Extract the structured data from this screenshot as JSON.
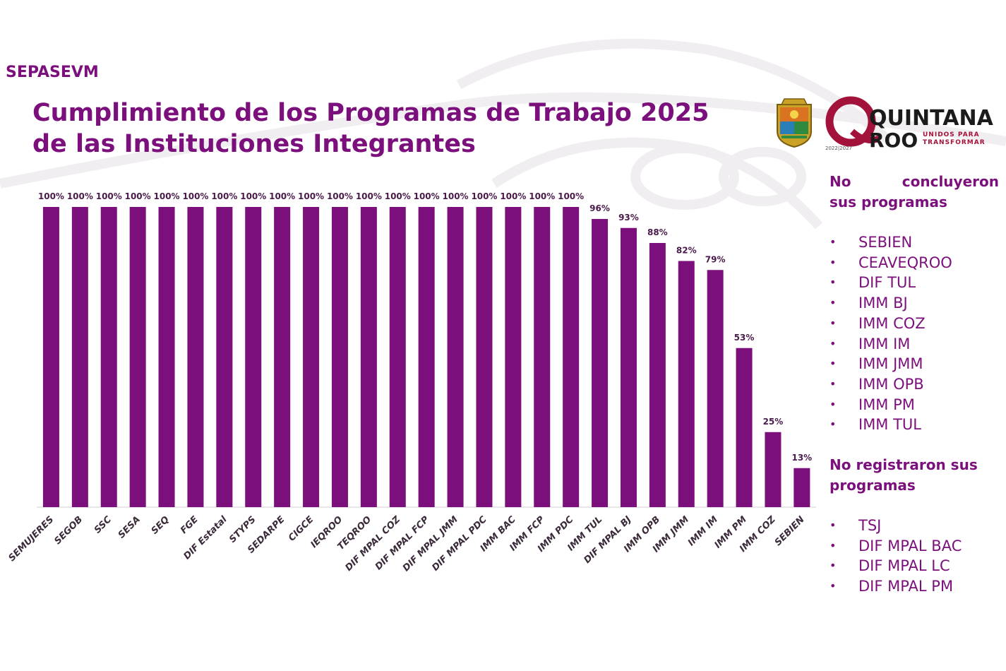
{
  "header": {
    "tag": "SEPASEVM",
    "title_line1": "Cumplimiento de los Programas de Trabajo 2025",
    "title_line2": "de las Instituciones Integrantes"
  },
  "logo": {
    "line1": "QUINTANA",
    "line2": "ROO",
    "tagline": "UNIDOS PARA TRANSFORMAR",
    "years": "2022|2027"
  },
  "colors": {
    "bar": "#7b0f7b",
    "accent": "#7b0f7b",
    "brand_red": "#a3123a"
  },
  "chart_data": {
    "type": "bar",
    "categories": [
      "SEMUJERES",
      "SEGOB",
      "SSC",
      "SESA",
      "SEQ",
      "FGE",
      "DIF Estatal",
      "STYPS",
      "SEDARPE",
      "CIGCE",
      "IEQROO",
      "TEQROO",
      "DIF MPAL COZ",
      "DIF MPAL FCP",
      "DIF MPAL JMM",
      "DIF MPAL PDC",
      "IMM BAC",
      "IMM FCP",
      "IMM PDC",
      "IMM TUL",
      "DIF MPAL BJ",
      "IMM OPB",
      "IMM JMM",
      "IMM IM",
      "IMM PM",
      "IMM COZ",
      "SEBIEN"
    ],
    "values": [
      100,
      100,
      100,
      100,
      100,
      100,
      100,
      100,
      100,
      100,
      100,
      100,
      100,
      100,
      100,
      100,
      100,
      100,
      100,
      96,
      93,
      88,
      82,
      79,
      53,
      25,
      13
    ],
    "data_labels": [
      "100%",
      "100%",
      "100%",
      "100%",
      "100%",
      "100%",
      "100%",
      "100%",
      "100%",
      "100%",
      "100%",
      "100%",
      "100%",
      "100%",
      "100%",
      "100%",
      "100%",
      "100%",
      "100%",
      "96%",
      "93%",
      "88%",
      "82%",
      "79%",
      "53%",
      "25%",
      "13%"
    ],
    "ylim": [
      0,
      100
    ],
    "grid": false,
    "legend": "none"
  },
  "side": {
    "not_concluded_heading_1": "No concluyeron",
    "not_concluded_heading_2": "sus programas",
    "not_concluded": [
      "SEBIEN",
      "CEAVEQROO",
      "DIF TUL",
      "IMM BJ",
      "IMM COZ",
      "IMM IM",
      "IMM JMM",
      "IMM OPB",
      "IMM PM",
      "IMM TUL"
    ],
    "not_registered_heading_1": "No registraron sus",
    "not_registered_heading_2": "programas",
    "not_registered": [
      "TSJ",
      "DIF MPAL BAC",
      "DIF MPAL LC",
      "DIF MPAL PM"
    ],
    "bullet": "•"
  }
}
